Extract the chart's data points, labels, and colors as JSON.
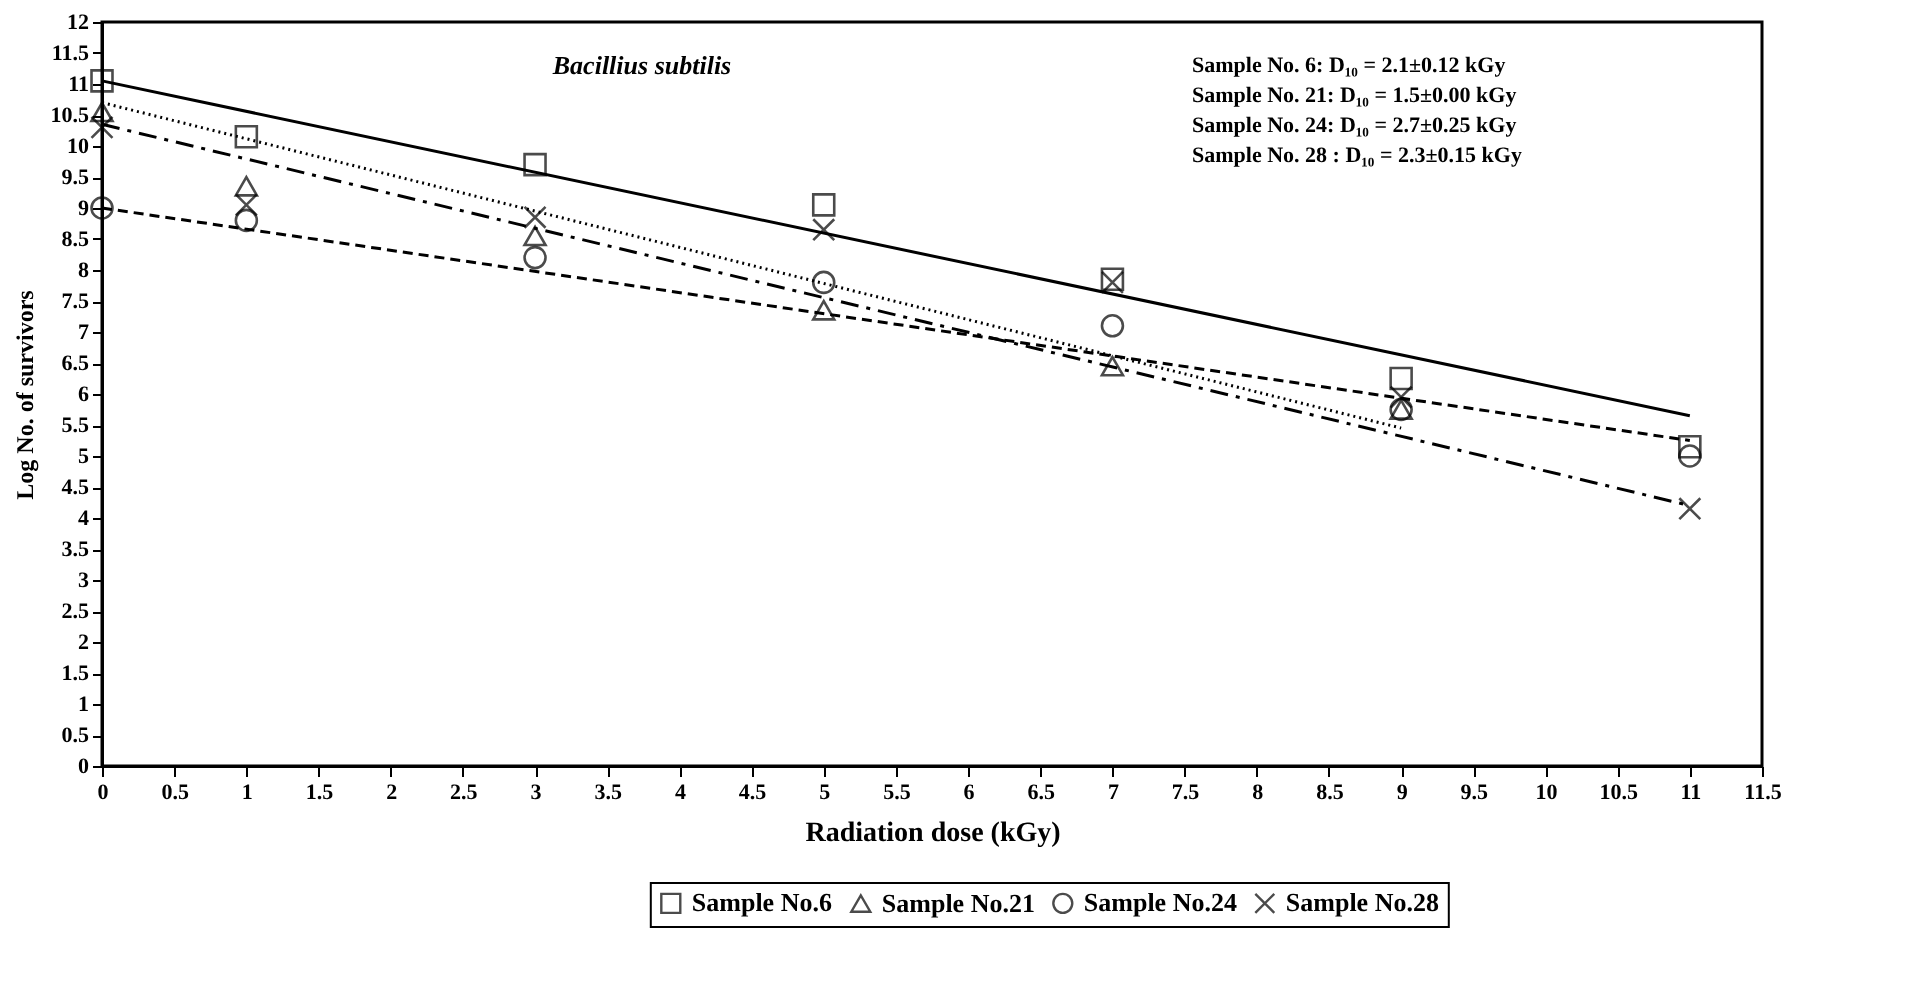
{
  "chart_data": {
    "type": "scatter",
    "xlabel": "Radiation dose (kGy)",
    "ylabel": "Log No. of survivors",
    "xlim": [
      0,
      11.5
    ],
    "xticks": [
      0,
      0.5,
      1,
      1.5,
      2,
      2.5,
      3,
      3.5,
      4,
      4.5,
      5,
      5.5,
      6,
      6.5,
      7,
      7.5,
      8,
      8.5,
      9,
      9.5,
      10,
      10.5,
      11,
      11.5
    ],
    "ylim": [
      0,
      12
    ],
    "yticks": [
      0,
      0.5,
      1,
      1.5,
      2,
      2.5,
      3,
      3.5,
      4,
      4.5,
      5,
      5.5,
      6,
      6.5,
      7,
      7.5,
      8,
      8.5,
      9,
      9.5,
      10,
      10.5,
      11,
      11.5,
      12
    ],
    "grid": false,
    "legend": "bottom",
    "annotations": [
      "Bacillius subtilis",
      "Sample No. 6: D₁₀ = 2.1±0.12 kGy",
      "Sample No. 21: D₁₀ = 1.5±0.00 kGy",
      "Sample No. 24: D₁₀ = 2.7±0.25 kGy",
      "Sample No. 28 : D₁₀ = 2.3±0.15 kGy"
    ],
    "series": [
      {
        "name": "Sample No.6",
        "type": "scatter",
        "marker": "square",
        "color": "#000000",
        "x": [
          0,
          1,
          3,
          5,
          7,
          9,
          11
        ],
        "values": [
          11.05,
          10.15,
          9.7,
          9.05,
          7.85,
          6.25,
          5.15
        ]
      },
      {
        "name": "Sample No.21",
        "type": "scatter",
        "marker": "triangle",
        "color": "#000000",
        "x": [
          0,
          1,
          3,
          5,
          7,
          9
        ],
        "values": [
          10.55,
          9.35,
          8.55,
          7.35,
          6.45,
          5.75
        ]
      },
      {
        "name": "Sample No.24",
        "type": "scatter",
        "marker": "circle",
        "color": "#000000",
        "x": [
          0,
          1,
          3,
          5,
          7,
          9,
          11
        ],
        "values": [
          9.0,
          8.8,
          8.2,
          7.8,
          7.1,
          5.75,
          5.0
        ]
      },
      {
        "name": "Sample No.28",
        "type": "scatter",
        "marker": "cross",
        "color": "#000000",
        "x": [
          0,
          1,
          3,
          5,
          7,
          9,
          11
        ],
        "values": [
          10.3,
          9.05,
          8.85,
          8.65,
          7.8,
          5.95,
          4.15
        ]
      },
      {
        "type": "line",
        "line_style": "solid",
        "color": "#000000",
        "x": [
          0,
          11
        ],
        "values": [
          11.05,
          5.65
        ]
      },
      {
        "type": "line",
        "line_style": "dotted",
        "color": "#000000",
        "x": [
          0,
          9
        ],
        "values": [
          10.7,
          5.45
        ]
      },
      {
        "type": "line",
        "line_style": "dashed",
        "color": "#000000",
        "x": [
          0,
          11
        ],
        "values": [
          9.0,
          5.25
        ]
      },
      {
        "type": "line",
        "line_style": "dashdot",
        "color": "#000000",
        "x": [
          0,
          11
        ],
        "values": [
          10.35,
          4.2
        ]
      }
    ]
  }
}
